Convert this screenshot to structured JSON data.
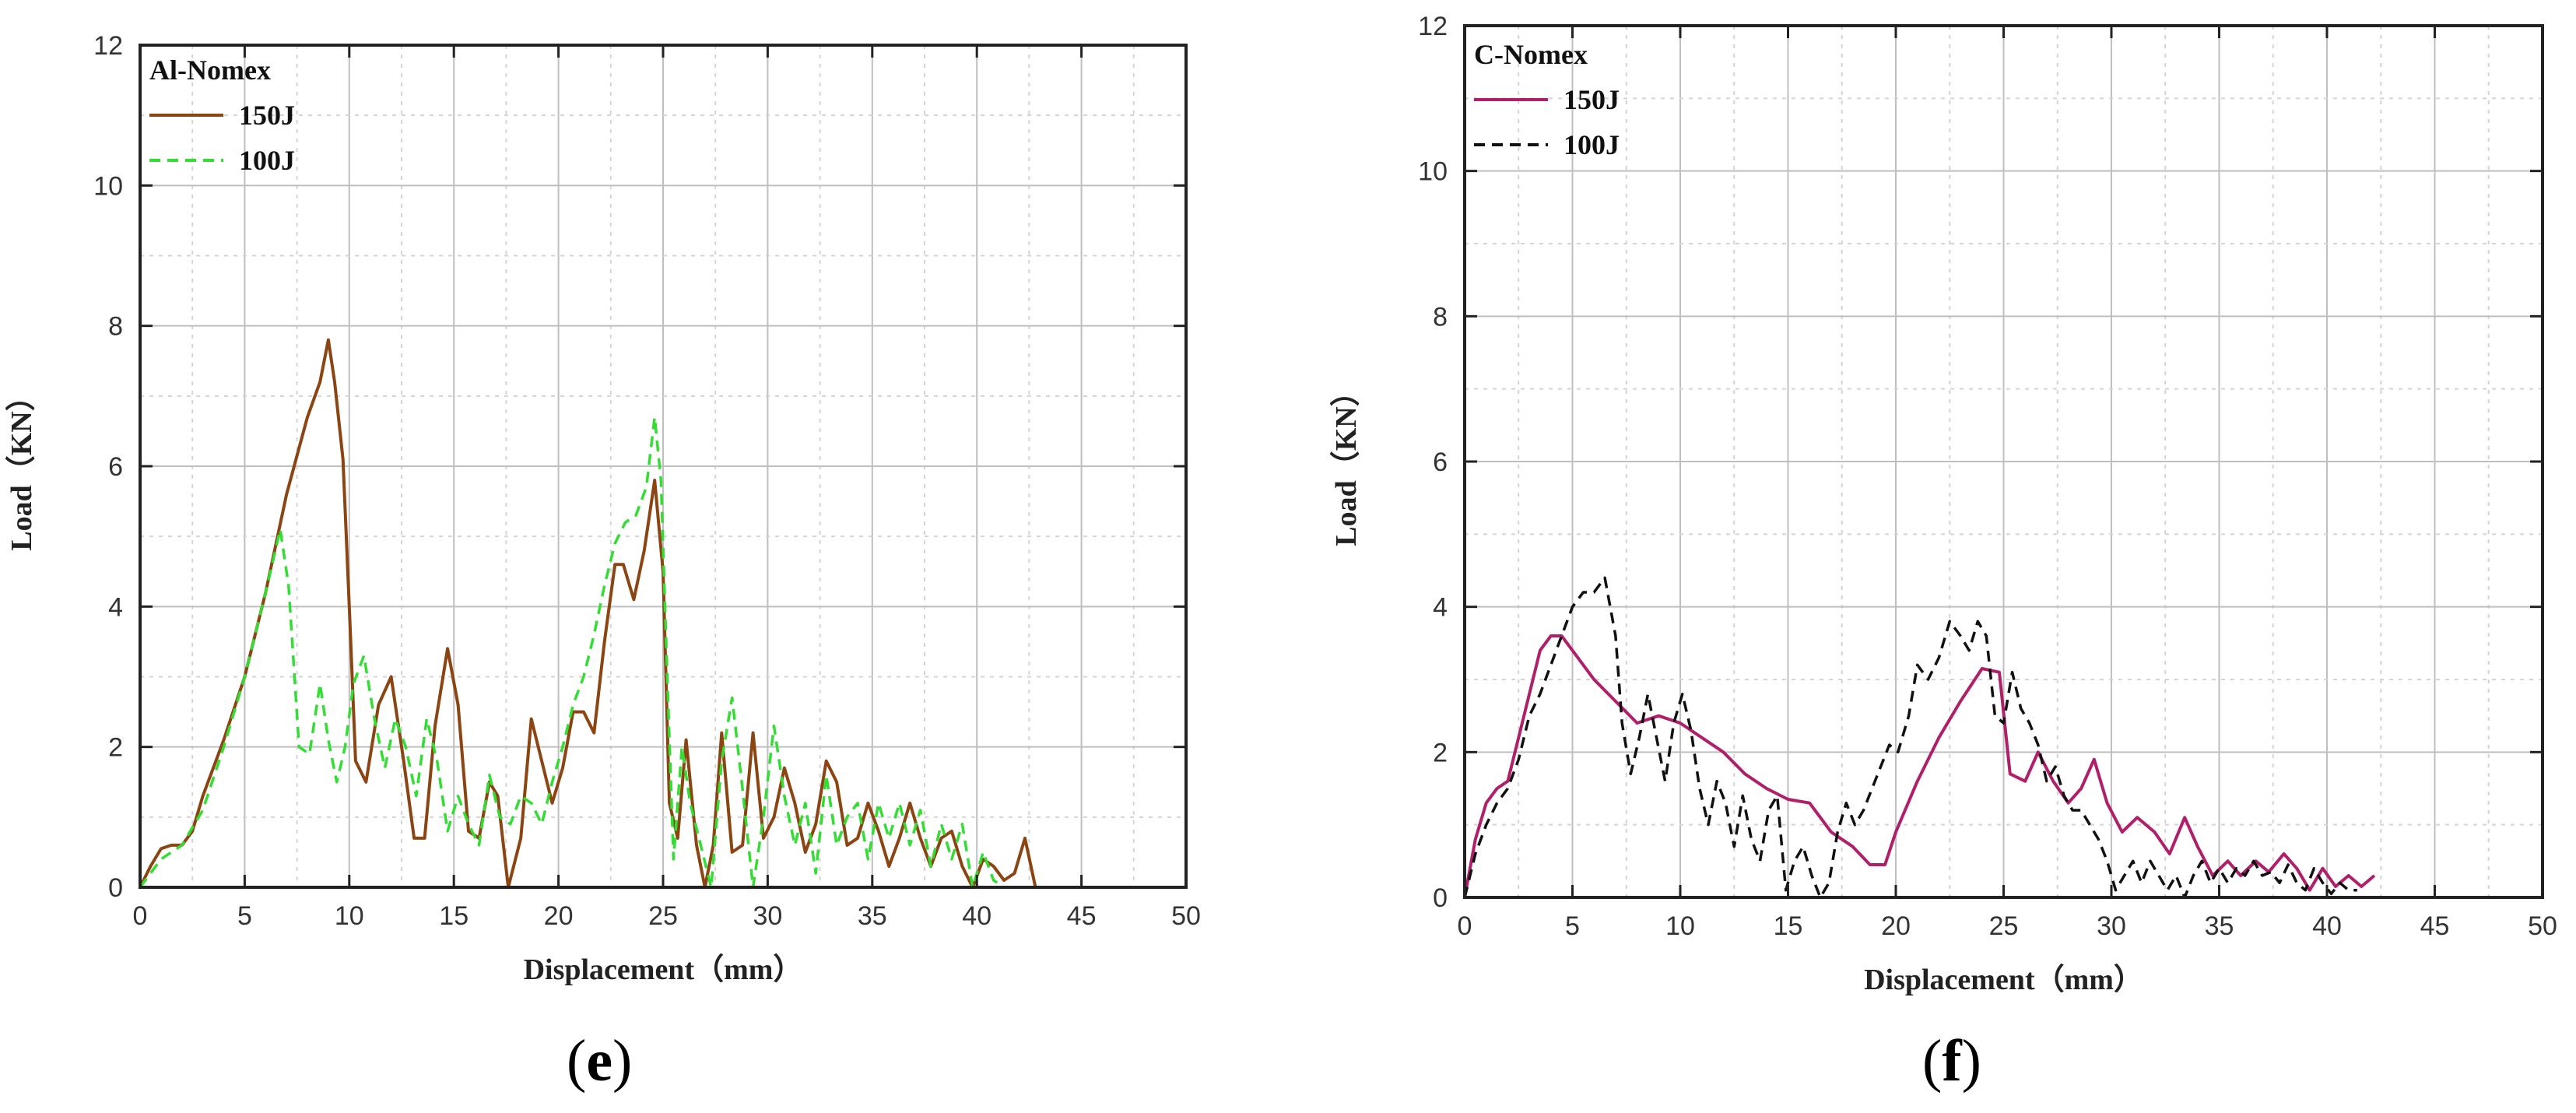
{
  "captions": {
    "e": "e",
    "f": "f"
  },
  "chart_data": [
    {
      "id": "e",
      "type": "line",
      "legend_title": "Al-Nomex",
      "legend_position": "top-left",
      "xlabel": "Displacement（mm）",
      "ylabel": "Load（KN）",
      "xlim": [
        0,
        50
      ],
      "ylim": [
        0,
        12
      ],
      "xticks": [
        0,
        5,
        10,
        15,
        20,
        25,
        30,
        35,
        40,
        45,
        50
      ],
      "yticks": [
        0,
        2,
        4,
        6,
        8,
        10,
        12
      ],
      "grid": true,
      "series": [
        {
          "name": "150J",
          "color": "#8B4513",
          "dash": "solid",
          "x": [
            0,
            0.5,
            1,
            1.5,
            2,
            2.5,
            3,
            4,
            5,
            6,
            7,
            8,
            8.6,
            9,
            9.3,
            9.7,
            10,
            10.3,
            10.8,
            11.4,
            12,
            12.6,
            13.1,
            13.6,
            14.1,
            14.7,
            15.2,
            15.7,
            16.2,
            16.7,
            17.1,
            17.6,
            18.2,
            18.7,
            19.2,
            19.7,
            20.2,
            20.7,
            21.2,
            21.7,
            22.2,
            22.7,
            23.1,
            23.6,
            24.1,
            24.6,
            25,
            25.3,
            25.7,
            26.1,
            26.6,
            27,
            27.4,
            27.8,
            28.3,
            28.8,
            29.3,
            29.8,
            30.3,
            30.8,
            31.3,
            31.8,
            32.3,
            32.8,
            33.3,
            33.8,
            34.3,
            34.8,
            35.3,
            35.8,
            36.3,
            36.8,
            37.3,
            37.8,
            38.3,
            38.8,
            39.3,
            39.8,
            40.3,
            40.8,
            41.3,
            41.8,
            42.3,
            42.8
          ],
          "y": [
            0,
            0.3,
            0.55,
            0.6,
            0.6,
            0.8,
            1.3,
            2.1,
            3.0,
            4.2,
            5.6,
            6.7,
            7.2,
            7.8,
            7.2,
            6.1,
            4.0,
            1.8,
            1.5,
            2.6,
            3.0,
            1.8,
            0.7,
            0.7,
            2.3,
            3.4,
            2.6,
            0.8,
            0.7,
            1.5,
            1.3,
            0.0,
            0.7,
            2.4,
            1.8,
            1.2,
            1.7,
            2.5,
            2.5,
            2.2,
            3.5,
            4.6,
            4.6,
            4.1,
            4.8,
            5.8,
            4.5,
            1.2,
            0.7,
            2.1,
            0.6,
            0.0,
            0.6,
            2.2,
            0.5,
            0.6,
            2.2,
            0.7,
            1.0,
            1.7,
            1.2,
            0.5,
            0.9,
            1.8,
            1.5,
            0.6,
            0.7,
            1.2,
            0.8,
            0.3,
            0.7,
            1.2,
            0.7,
            0.3,
            0.7,
            0.8,
            0.3,
            0.0,
            0.4,
            0.3,
            0.1,
            0.2,
            0.7,
            0.0
          ]
        },
        {
          "name": "100J",
          "color": "#33dd33",
          "dash": "dashed",
          "x": [
            0,
            1,
            2,
            3,
            4,
            5,
            6,
            6.7,
            7.1,
            7.6,
            8.1,
            8.6,
            9,
            9.4,
            9.8,
            10.2,
            10.7,
            11.2,
            11.7,
            12.2,
            12.7,
            13.2,
            13.7,
            14.2,
            14.7,
            15.2,
            15.7,
            16.2,
            16.7,
            17.2,
            17.7,
            18.2,
            18.7,
            19.2,
            19.7,
            20.2,
            20.7,
            21.2,
            21.7,
            22.2,
            22.7,
            23.2,
            23.7,
            24.2,
            24.6,
            24.9,
            25.2,
            25.5,
            25.9,
            26.3,
            26.8,
            27.3,
            27.8,
            28.3,
            28.8,
            29.3,
            29.8,
            30.3,
            30.8,
            31.3,
            31.8,
            32.3,
            32.8,
            33.3,
            33.8,
            34.3,
            34.8,
            35.3,
            35.8,
            36.3,
            36.8,
            37.3,
            37.8,
            38.3,
            38.8,
            39.3,
            39.8,
            40.3,
            40.8,
            41.3
          ],
          "y": [
            0,
            0.4,
            0.6,
            1.1,
            2.0,
            3.0,
            4.2,
            5.1,
            4.3,
            2.0,
            1.9,
            2.9,
            2.1,
            1.5,
            2.0,
            2.9,
            3.3,
            2.4,
            1.7,
            2.4,
            2.0,
            1.3,
            2.4,
            1.8,
            0.8,
            1.3,
            0.9,
            0.6,
            1.6,
            1.0,
            0.9,
            1.3,
            1.2,
            0.9,
            1.5,
            2.0,
            2.6,
            3.0,
            3.6,
            4.3,
            4.9,
            5.2,
            5.3,
            5.7,
            6.7,
            5.8,
            3.0,
            0.4,
            2.0,
            1.2,
            0.6,
            0.0,
            1.8,
            2.7,
            1.4,
            0.0,
            1.0,
            2.3,
            1.3,
            0.6,
            1.2,
            0.2,
            1.6,
            0.6,
            1.0,
            1.2,
            0.4,
            1.2,
            0.7,
            1.2,
            0.6,
            1.1,
            0.3,
            0.9,
            0.4,
            0.9,
            0.0,
            0.5,
            0.1,
            0.0
          ]
        }
      ]
    },
    {
      "id": "f",
      "type": "line",
      "legend_title": "C-Nomex",
      "legend_position": "top-left",
      "xlabel": "Displacement（mm）",
      "ylabel": "Load（KN）",
      "xlim": [
        0,
        50
      ],
      "ylim": [
        0,
        12
      ],
      "xticks": [
        0,
        5,
        10,
        15,
        20,
        25,
        30,
        35,
        40,
        45,
        50
      ],
      "yticks": [
        0,
        2,
        4,
        6,
        8,
        10,
        12
      ],
      "grid": true,
      "series": [
        {
          "name": "150J",
          "color": "#b0206a",
          "dash": "solid",
          "x": [
            0,
            0.5,
            1,
            1.5,
            2,
            2.5,
            3,
            3.5,
            4,
            4.5,
            5,
            6,
            7,
            8,
            9,
            10,
            11,
            12,
            13,
            14,
            15,
            16,
            17,
            18,
            18.8,
            19.5,
            20,
            21,
            22,
            23,
            24,
            24.8,
            25.3,
            26,
            26.6,
            27.3,
            28,
            28.6,
            29.2,
            29.8,
            30.5,
            31.2,
            32,
            32.7,
            33.4,
            34,
            34.7,
            35.4,
            36,
            36.7,
            37.3,
            38,
            38.6,
            39.2,
            39.8,
            40.4,
            41,
            41.6,
            42.2
          ],
          "y": [
            0,
            0.8,
            1.3,
            1.5,
            1.6,
            2.2,
            2.8,
            3.4,
            3.6,
            3.6,
            3.4,
            3.0,
            2.7,
            2.4,
            2.5,
            2.4,
            2.2,
            2.0,
            1.7,
            1.5,
            1.35,
            1.3,
            0.9,
            0.7,
            0.45,
            0.45,
            0.9,
            1.6,
            2.2,
            2.7,
            3.15,
            3.1,
            1.7,
            1.6,
            2.0,
            1.6,
            1.3,
            1.5,
            1.9,
            1.3,
            0.9,
            1.1,
            0.9,
            0.6,
            1.1,
            0.7,
            0.3,
            0.5,
            0.3,
            0.5,
            0.35,
            0.6,
            0.4,
            0.1,
            0.4,
            0.15,
            0.3,
            0.15,
            0.3
          ]
        },
        {
          "name": "100J",
          "color": "#111111",
          "dash": "dashed",
          "x": [
            0,
            0.5,
            1,
            1.5,
            2,
            2.5,
            3,
            3.5,
            4,
            4.5,
            5,
            5.5,
            6,
            6.5,
            7,
            7.3,
            7.7,
            8.1,
            8.5,
            8.9,
            9.3,
            9.7,
            10.1,
            10.5,
            10.9,
            11.3,
            11.7,
            12.1,
            12.5,
            12.9,
            13.3,
            13.7,
            14.1,
            14.5,
            14.9,
            15.3,
            15.7,
            16.1,
            16.5,
            16.9,
            17.3,
            17.7,
            18.1,
            18.5,
            18.9,
            19.3,
            19.7,
            20.1,
            20.6,
            21,
            21.5,
            22,
            22.5,
            23,
            23.4,
            23.8,
            24.2,
            24.6,
            25,
            25.4,
            25.8,
            26.2,
            26.6,
            27,
            27.4,
            27.8,
            28.2,
            28.6,
            29,
            29.4,
            29.8,
            30.2,
            30.6,
            31,
            31.4,
            31.8,
            32.2,
            32.6,
            33,
            33.4,
            33.8,
            34.2,
            34.6,
            35,
            35.4,
            35.8,
            36.2,
            36.6,
            37,
            37.4,
            37.8,
            38.2,
            38.6,
            39,
            39.4,
            39.8,
            40.2,
            40.6,
            41,
            41.4
          ],
          "y": [
            0,
            0.6,
            1.0,
            1.3,
            1.5,
            1.9,
            2.5,
            2.8,
            3.2,
            3.6,
            4.0,
            4.2,
            4.2,
            4.4,
            3.6,
            2.4,
            1.7,
            2.2,
            2.8,
            2.2,
            1.6,
            2.4,
            2.8,
            2.3,
            1.5,
            1.0,
            1.6,
            1.3,
            0.7,
            1.4,
            0.8,
            0.5,
            1.2,
            1.4,
            0.1,
            0.5,
            0.7,
            0.3,
            0.0,
            0.2,
            0.9,
            1.3,
            1.0,
            1.2,
            1.5,
            1.8,
            2.1,
            2.0,
            2.5,
            3.2,
            3.0,
            3.3,
            3.8,
            3.6,
            3.4,
            3.8,
            3.6,
            2.5,
            2.4,
            3.1,
            2.6,
            2.4,
            2.1,
            1.6,
            1.8,
            1.4,
            1.2,
            1.2,
            1.0,
            0.8,
            0.5,
            0.1,
            0.3,
            0.5,
            0.2,
            0.5,
            0.3,
            0.1,
            0.3,
            0.0,
            0.3,
            0.5,
            0.2,
            0.4,
            0.2,
            0.4,
            0.3,
            0.5,
            0.3,
            0.35,
            0.2,
            0.45,
            0.2,
            0.1,
            0.4,
            0.2,
            0.05,
            0.2,
            0.1,
            0.1
          ]
        }
      ]
    }
  ]
}
